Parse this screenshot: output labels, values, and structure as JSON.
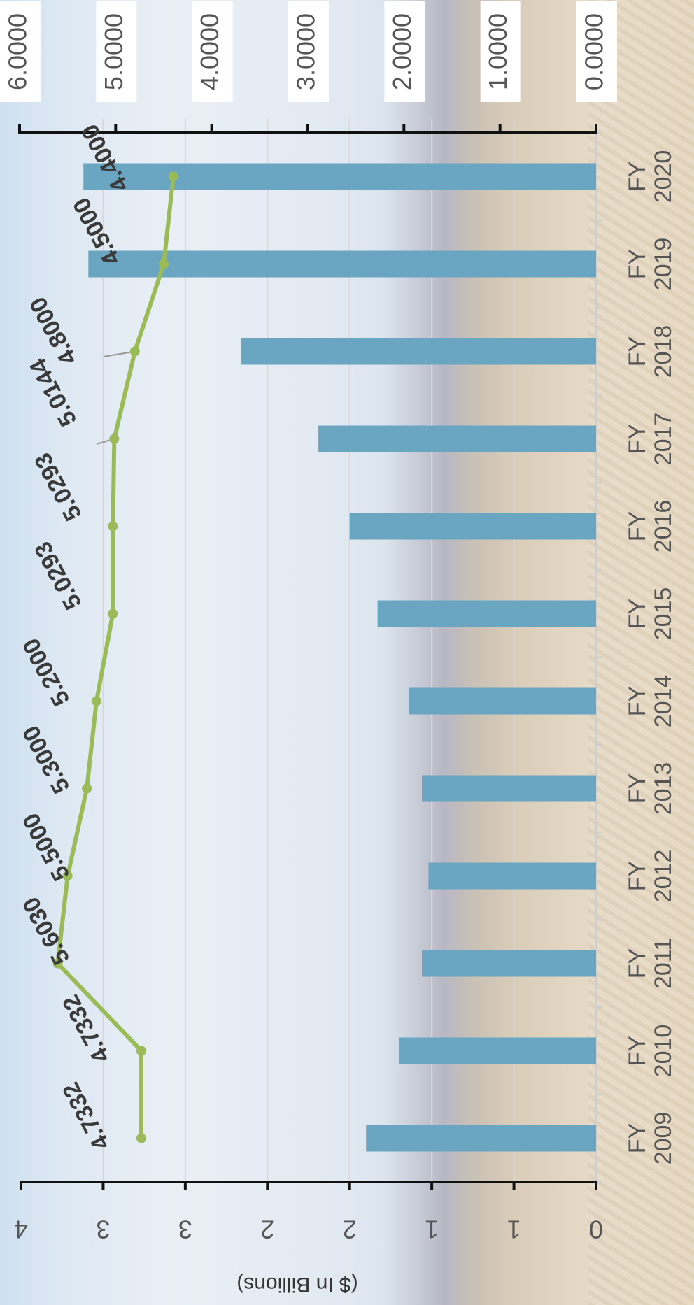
{
  "chart_data": {
    "type": "bar",
    "orientation": "rotated-180",
    "categories": [
      "FY 2009",
      "FY 2010",
      "FY 2011",
      "FY 2012",
      "FY 2013",
      "FY 2014",
      "FY 2015",
      "FY 2016",
      "FY 2017",
      "FY 2018",
      "FY 2019",
      "FY 2020"
    ],
    "series": [
      {
        "type": "bar",
        "axis": "primary",
        "color": "#6aa5c2",
        "values": [
          1.4,
          1.2,
          1.06,
          1.02,
          1.06,
          1.14,
          1.33,
          1.5,
          1.69,
          2.16,
          3.09,
          3.12
        ]
      },
      {
        "type": "line",
        "axis": "secondary",
        "color": "#9bbb59",
        "values": [
          4.7332,
          4.7332,
          5.603,
          5.5,
          5.3,
          5.2,
          5.0293,
          5.0293,
          5.0144,
          4.8,
          4.5,
          4.4
        ],
        "labels": [
          "4.7332",
          "4.7332",
          "5.6030",
          "5.5000",
          "5.3000",
          "5.2000",
          "5.0293",
          "5.0293",
          "5.0144",
          "4.8000",
          "4.5000",
          "4.4000"
        ]
      }
    ],
    "primary_axis": {
      "label": "($ In Billions)",
      "ylim": [
        0,
        3.5
      ],
      "ticks": [
        0,
        0.5,
        1.0,
        1.5,
        2.0,
        2.5,
        3.0,
        3.5
      ],
      "tick_labels": [
        "0",
        "1",
        "1",
        "2",
        "2",
        "3",
        "3",
        "4"
      ]
    },
    "secondary_axis": {
      "ylim": [
        0,
        6
      ],
      "ticks": [
        0,
        1,
        2,
        3,
        4,
        5,
        6
      ],
      "tick_labels": [
        "0.0000",
        "1.0000",
        "2.0000",
        "3.0000",
        "4.0000",
        "5.0000",
        "6.0000"
      ]
    },
    "grid": true,
    "legend": "none"
  }
}
